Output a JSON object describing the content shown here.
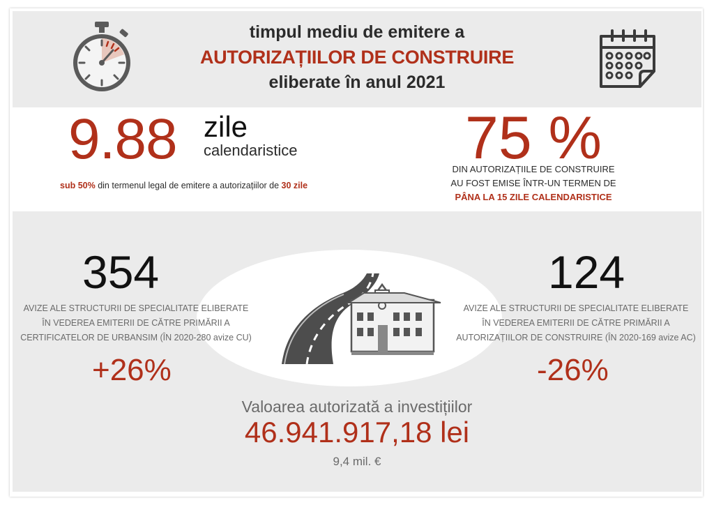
{
  "header": {
    "line1": "timpul mediu de emitere a",
    "line2": "AUTORIZAȚIILOR DE CONSTRUIRE",
    "line3": "eliberate în anul 2021"
  },
  "icons": {
    "left": "stopwatch-icon",
    "right": "calendar-icon",
    "center": "road-building-icon"
  },
  "colors": {
    "accent": "#b0301a",
    "band": "#ebebeb",
    "text": "#2b2b2b"
  },
  "average_days": {
    "value": "9.88",
    "unit_main": "zile",
    "unit_sub": "calendaristice",
    "note_strong1": "sub 50%",
    "note_text": " din termenul legal de emitere a autorizațiilor de ",
    "note_strong2": "30 zile"
  },
  "share_15_days": {
    "value": "75 %",
    "line1": "DIN AUTORIZAȚIILE  DE CONSTRUIRE",
    "line2": "AU FOST EMISE  ÎNTR-UN TERMEN DE",
    "line3": "PÂNA LA 15 ZILE CALENDARISTICE"
  },
  "avize_cu": {
    "value": "354",
    "line1": "AVIZE ALE STRUCTURII DE SPECIALITATE ELIBERATE",
    "line2": "ÎN VEDEREA  EMITERII DE CĂTRE PRIMĂRII A",
    "line3": "CERTIFICATELOR DE URBANSIM  (ÎN 2020-280 avize CU)",
    "change": "+26%"
  },
  "avize_ac": {
    "value": "124",
    "line1": "AVIZE ALE STRUCTURII DE SPECIALITATE ELIBERATE",
    "line2": "ÎN VEDEREA EMITERII  DE CĂTRE PRIMĂRII A",
    "line3": "AUTORIZAȚIILOR DE CONSTRUIRE (ÎN 2020-169 avize AC)",
    "change": "-26%"
  },
  "investment": {
    "label": "Valoarea autorizată a investițiilor",
    "value": "46.941.917,18 lei",
    "euro": "9,4 mil. €"
  }
}
